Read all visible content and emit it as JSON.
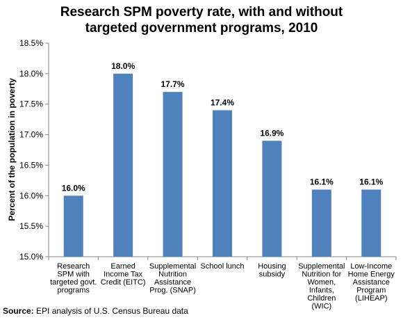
{
  "chart_data": {
    "type": "bar",
    "title_lines": [
      "Research SPM poverty rate, with and without",
      "targeted government programs, 2010"
    ],
    "ylabel": "Percent of the population in poverty",
    "xlabel": "",
    "ylim": [
      15.0,
      18.5
    ],
    "y_ticks": [
      "15.0%",
      "15.5%",
      "16.0%",
      "16.5%",
      "17.0%",
      "17.5%",
      "18.0%",
      "18.5%"
    ],
    "y_tick_values": [
      15.0,
      15.5,
      16.0,
      16.5,
      17.0,
      17.5,
      18.0,
      18.5
    ],
    "grid": false,
    "legend": "none",
    "bar_color": "#4f81bd",
    "categories": [
      [
        "Research",
        "SPM with",
        "targeted govt.",
        "programs"
      ],
      [
        "Earned",
        "Income Tax",
        "Credit (EITC)"
      ],
      [
        "Supplemental",
        "Nutrition",
        "Assistance",
        "Prog. (SNAP)"
      ],
      [
        "School lunch"
      ],
      [
        "Housing",
        "subsidy"
      ],
      [
        "Supplemental",
        "Nutrition for",
        "Women,",
        "Infants,",
        "Children",
        "(WIC)"
      ],
      [
        "Low-Income",
        "Home Energy",
        "Assistance",
        "Program",
        "(LIHEAP)"
      ]
    ],
    "values": [
      16.0,
      18.0,
      17.7,
      17.4,
      16.9,
      16.1,
      16.1
    ],
    "data_labels": [
      "16.0%",
      "18.0%",
      "17.7%",
      "17.4%",
      "16.9%",
      "16.1%",
      "16.1%"
    ]
  },
  "source": {
    "label": "Source:",
    "text": " EPI analysis of U.S. Census Bureau data"
  }
}
